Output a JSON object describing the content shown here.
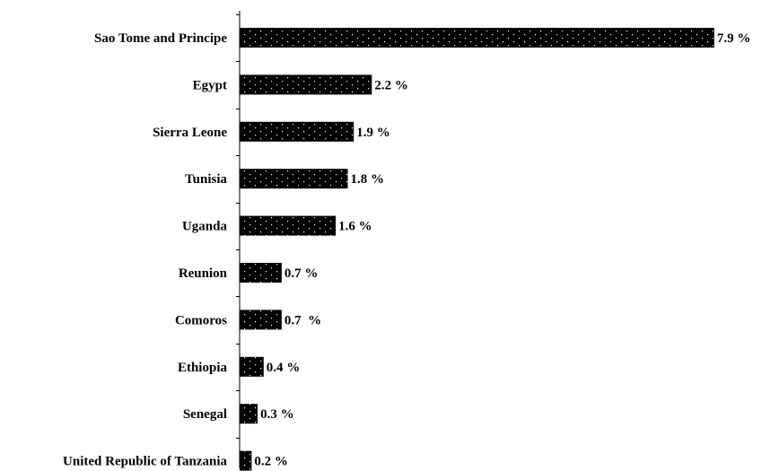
{
  "chart_data": {
    "type": "bar",
    "orientation": "horizontal",
    "title": "",
    "xlabel": "",
    "ylabel": "",
    "categories": [
      "Sao Tome and Principe",
      "Egypt",
      "Sierra Leone",
      "Tunisia",
      "Uganda",
      "Reunion",
      "Comoros",
      "Ethiopia",
      "Senegal",
      "United Republic of Tanzania"
    ],
    "values": [
      7.9,
      2.2,
      1.9,
      1.8,
      1.6,
      0.7,
      0.7,
      0.4,
      0.3,
      0.2
    ],
    "value_labels": [
      "7.9 %",
      "2.2 %",
      "1.9 %",
      "1.8 %",
      "1.6 %",
      "0.7 %",
      "0.7  %",
      "0.4 %",
      "0.3 %",
      "0.2 %"
    ],
    "xlim": [
      0,
      7.9
    ],
    "grid": false,
    "legend": "none",
    "bar_color": "#000000",
    "bar_pattern": "white-dots"
  }
}
